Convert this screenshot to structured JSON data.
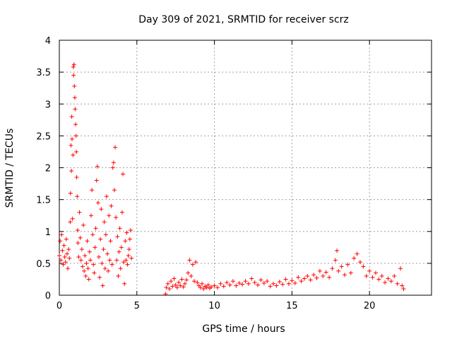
{
  "chart_data": {
    "type": "scatter",
    "title": "Day 309 of 2021, SRMTID for receiver scrz",
    "xlabel": "GPS time / hours",
    "ylabel": "SRMTID / TECUs",
    "xlim": [
      0,
      24
    ],
    "ylim": [
      0,
      4
    ],
    "xticks": [
      0,
      5,
      10,
      15,
      20
    ],
    "yticks": [
      0,
      0.5,
      1,
      1.5,
      2,
      2.5,
      3,
      3.5,
      4
    ],
    "grid": true,
    "marker": "+",
    "color": "#ff0000",
    "series": [
      {
        "name": "SRMTID",
        "points": [
          [
            0.0,
            0.62
          ],
          [
            0.05,
            0.85
          ],
          [
            0.1,
            0.55
          ],
          [
            0.15,
            0.95
          ],
          [
            0.2,
            0.7
          ],
          [
            0.25,
            0.48
          ],
          [
            0.3,
            0.78
          ],
          [
            0.35,
            0.6
          ],
          [
            0.4,
            0.52
          ],
          [
            0.45,
            0.88
          ],
          [
            0.5,
            0.65
          ],
          [
            0.55,
            0.42
          ],
          [
            0.6,
            0.72
          ],
          [
            0.65,
            0.58
          ],
          [
            0.7,
            1.15
          ],
          [
            0.72,
            1.6
          ],
          [
            0.75,
            2.35
          ],
          [
            0.78,
            1.95
          ],
          [
            0.8,
            2.8
          ],
          [
            0.82,
            2.45
          ],
          [
            0.85,
            1.2
          ],
          [
            0.88,
            2.2
          ],
          [
            0.9,
            3.58
          ],
          [
            0.92,
            3.45
          ],
          [
            0.95,
            3.62
          ],
          [
            0.97,
            3.28
          ],
          [
            1.0,
            3.1
          ],
          [
            1.02,
            2.92
          ],
          [
            1.05,
            2.68
          ],
          [
            1.08,
            2.5
          ],
          [
            1.1,
            2.25
          ],
          [
            1.12,
            1.85
          ],
          [
            1.15,
            1.55
          ],
          [
            1.18,
            1.02
          ],
          [
            1.2,
            0.82
          ],
          [
            1.25,
            0.6
          ],
          [
            1.3,
            1.3
          ],
          [
            1.35,
            0.9
          ],
          [
            1.4,
            0.55
          ],
          [
            1.45,
            0.72
          ],
          [
            1.5,
            0.45
          ],
          [
            1.55,
            1.1
          ],
          [
            1.6,
            0.38
          ],
          [
            1.65,
            0.62
          ],
          [
            1.7,
            0.3
          ],
          [
            1.75,
            0.5
          ],
          [
            1.8,
            0.85
          ],
          [
            1.85,
            0.42
          ],
          [
            1.9,
            0.25
          ],
          [
            1.95,
            0.68
          ],
          [
            2.0,
            0.55
          ],
          [
            2.05,
            1.25
          ],
          [
            2.1,
            1.65
          ],
          [
            2.15,
            0.95
          ],
          [
            2.2,
            0.48
          ],
          [
            2.25,
            0.35
          ],
          [
            2.3,
            0.75
          ],
          [
            2.35,
            1.05
          ],
          [
            2.4,
            1.8
          ],
          [
            2.45,
            2.02
          ],
          [
            2.5,
            1.45
          ],
          [
            2.55,
            0.6
          ],
          [
            2.6,
            0.28
          ],
          [
            2.65,
            0.88
          ],
          [
            2.7,
            1.35
          ],
          [
            2.75,
            0.5
          ],
          [
            2.8,
            0.15
          ],
          [
            2.85,
            0.72
          ],
          [
            2.9,
            1.15
          ],
          [
            2.95,
            0.42
          ],
          [
            3.0,
            0.95
          ],
          [
            3.05,
            1.55
          ],
          [
            3.1,
            0.65
          ],
          [
            3.15,
            0.38
          ],
          [
            3.2,
            1.25
          ],
          [
            3.25,
            0.55
          ],
          [
            3.3,
            0.85
          ],
          [
            3.35,
            1.4
          ],
          [
            3.4,
            0.48
          ],
          [
            3.45,
            2.0
          ],
          [
            3.5,
            2.08
          ],
          [
            3.55,
            1.65
          ],
          [
            3.6,
            2.32
          ],
          [
            3.65,
            1.22
          ],
          [
            3.7,
            0.55
          ],
          [
            3.75,
            0.92
          ],
          [
            3.8,
            0.3
          ],
          [
            3.85,
            0.68
          ],
          [
            3.9,
            1.05
          ],
          [
            3.95,
            0.42
          ],
          [
            4.0,
            0.75
          ],
          [
            4.05,
            1.3
          ],
          [
            4.1,
            1.9
          ],
          [
            4.15,
            0.52
          ],
          [
            4.2,
            0.18
          ],
          [
            4.25,
            0.85
          ],
          [
            4.3,
            0.55
          ],
          [
            4.35,
            0.98
          ],
          [
            4.4,
            0.48
          ],
          [
            4.45,
            0.62
          ],
          [
            4.5,
            0.72
          ],
          [
            4.55,
            0.88
          ],
          [
            4.6,
            1.02
          ],
          [
            4.65,
            0.58
          ],
          [
            6.85,
            0.02
          ],
          [
            6.9,
            0.12
          ],
          [
            7.0,
            0.18
          ],
          [
            7.1,
            0.1
          ],
          [
            7.2,
            0.22
          ],
          [
            7.3,
            0.14
          ],
          [
            7.4,
            0.26
          ],
          [
            7.5,
            0.16
          ],
          [
            7.6,
            0.12
          ],
          [
            7.7,
            0.2
          ],
          [
            7.8,
            0.15
          ],
          [
            7.9,
            0.25
          ],
          [
            8.0,
            0.13
          ],
          [
            8.1,
            0.18
          ],
          [
            8.2,
            0.24
          ],
          [
            8.3,
            0.35
          ],
          [
            8.4,
            0.55
          ],
          [
            8.5,
            0.3
          ],
          [
            8.6,
            0.48
          ],
          [
            8.7,
            0.22
          ],
          [
            8.8,
            0.52
          ],
          [
            8.9,
            0.2
          ],
          [
            9.0,
            0.15
          ],
          [
            9.1,
            0.12
          ],
          [
            9.2,
            0.18
          ],
          [
            9.3,
            0.1
          ],
          [
            9.4,
            0.14
          ],
          [
            9.5,
            0.12
          ],
          [
            9.6,
            0.16
          ],
          [
            9.7,
            0.11
          ],
          [
            9.8,
            0.13
          ],
          [
            10.0,
            0.15
          ],
          [
            10.2,
            0.12
          ],
          [
            10.4,
            0.18
          ],
          [
            10.6,
            0.14
          ],
          [
            10.8,
            0.2
          ],
          [
            11.0,
            0.16
          ],
          [
            11.2,
            0.22
          ],
          [
            11.4,
            0.15
          ],
          [
            11.6,
            0.19
          ],
          [
            11.8,
            0.17
          ],
          [
            12.0,
            0.22
          ],
          [
            12.2,
            0.18
          ],
          [
            12.4,
            0.26
          ],
          [
            12.6,
            0.2
          ],
          [
            12.8,
            0.16
          ],
          [
            13.0,
            0.24
          ],
          [
            13.2,
            0.19
          ],
          [
            13.4,
            0.22
          ],
          [
            13.6,
            0.14
          ],
          [
            13.8,
            0.18
          ],
          [
            14.0,
            0.15
          ],
          [
            14.2,
            0.21
          ],
          [
            14.4,
            0.17
          ],
          [
            14.6,
            0.25
          ],
          [
            14.8,
            0.18
          ],
          [
            15.0,
            0.23
          ],
          [
            15.2,
            0.19
          ],
          [
            15.4,
            0.28
          ],
          [
            15.6,
            0.22
          ],
          [
            15.8,
            0.26
          ],
          [
            16.0,
            0.3
          ],
          [
            16.2,
            0.24
          ],
          [
            16.4,
            0.32
          ],
          [
            16.6,
            0.27
          ],
          [
            16.8,
            0.38
          ],
          [
            17.0,
            0.3
          ],
          [
            17.2,
            0.36
          ],
          [
            17.4,
            0.28
          ],
          [
            17.6,
            0.42
          ],
          [
            17.8,
            0.55
          ],
          [
            17.9,
            0.7
          ],
          [
            18.0,
            0.38
          ],
          [
            18.2,
            0.45
          ],
          [
            18.4,
            0.32
          ],
          [
            18.6,
            0.48
          ],
          [
            18.8,
            0.35
          ],
          [
            19.0,
            0.58
          ],
          [
            19.2,
            0.65
          ],
          [
            19.4,
            0.52
          ],
          [
            19.6,
            0.45
          ],
          [
            19.8,
            0.3
          ],
          [
            20.0,
            0.38
          ],
          [
            20.2,
            0.28
          ],
          [
            20.4,
            0.35
          ],
          [
            20.6,
            0.25
          ],
          [
            20.8,
            0.3
          ],
          [
            21.0,
            0.2
          ],
          [
            21.2,
            0.26
          ],
          [
            21.4,
            0.22
          ],
          [
            21.6,
            0.3
          ],
          [
            21.8,
            0.18
          ],
          [
            22.0,
            0.42
          ],
          [
            22.1,
            0.15
          ],
          [
            22.2,
            0.1
          ]
        ]
      }
    ]
  }
}
